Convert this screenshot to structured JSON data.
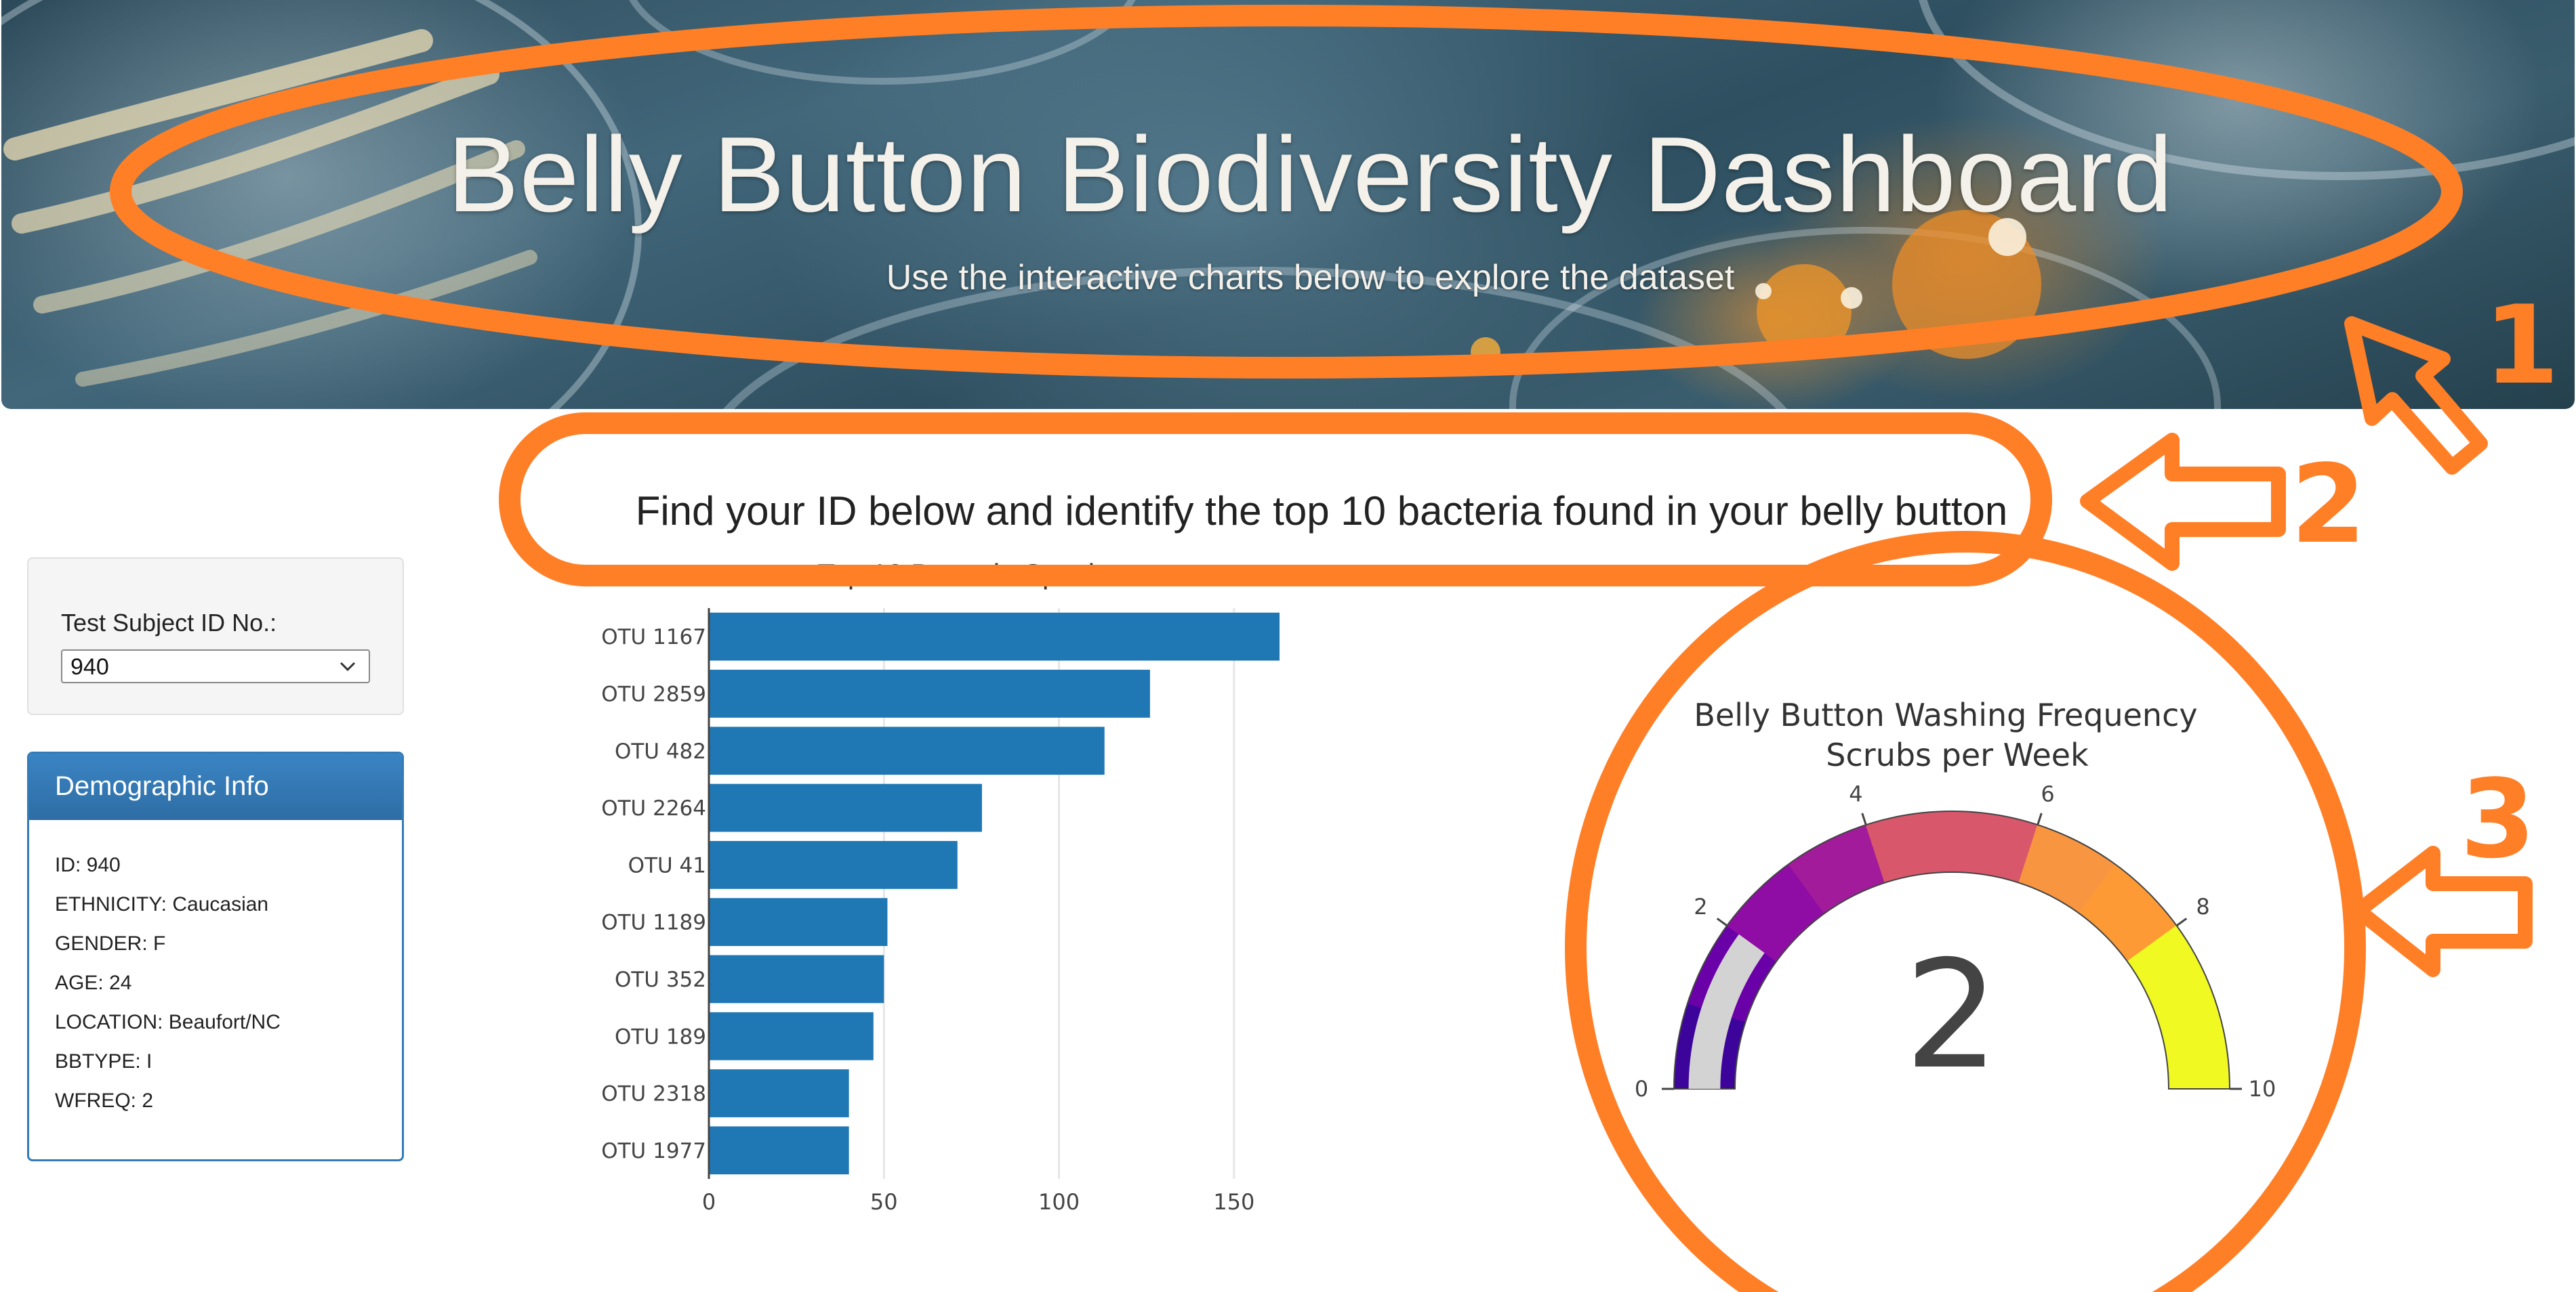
{
  "hero": {
    "title": "Belly Button Biodiversity Dashboard",
    "subtitle": "Use the interactive charts below to explore the dataset"
  },
  "main_heading": "Find your ID below and identify the top 10 bacteria found in your belly button",
  "selector": {
    "label": "Test Subject ID No.:",
    "selected": "940"
  },
  "demographic": {
    "title": "Demographic Info",
    "rows": [
      "ID: 940",
      "ETHNICITY: Caucasian",
      "GENDER: F",
      "AGE: 24",
      "LOCATION: Beaufort/NC",
      "BBTYPE: I",
      "WFREQ: 2"
    ]
  },
  "annotations": {
    "labels": [
      "1",
      "2",
      "3"
    ],
    "color": "#ff7f27"
  },
  "chart_data": [
    {
      "type": "bar",
      "orientation": "horizontal",
      "title": "Top 10 Bacteria Species",
      "categories": [
        "OTU 1167",
        "OTU 2859",
        "OTU 482",
        "OTU 2264",
        "OTU 41",
        "OTU 1189",
        "OTU 352",
        "OTU 189",
        "OTU 2318",
        "OTU 1977"
      ],
      "values": [
        163,
        126,
        113,
        78,
        71,
        51,
        50,
        47,
        40,
        40
      ],
      "xticks": [
        "0",
        "50",
        "100",
        "150"
      ],
      "xlim": [
        0,
        175
      ],
      "grid": true,
      "color": "#1f77b4"
    },
    {
      "type": "gauge",
      "title": "Belly Button Washing Frequency",
      "subtitle": "Scrubs per Week",
      "value": 2,
      "value_label": "2",
      "range": [
        0,
        10
      ],
      "ticks": [
        "0",
        "2",
        "4",
        "6",
        "8",
        "10"
      ],
      "bands": [
        {
          "from": 0,
          "to": 1,
          "color": "#3d049b"
        },
        {
          "from": 1,
          "to": 2,
          "color": "#6a00a8"
        },
        {
          "from": 2,
          "to": 3,
          "color": "#8f0da4"
        },
        {
          "from": 3,
          "to": 4,
          "color": "#a11b9b"
        },
        {
          "from": 4,
          "to": 6,
          "color": "#d8576b"
        },
        {
          "from": 6,
          "to": 7,
          "color": "#f89540"
        },
        {
          "from": 7,
          "to": 8,
          "color": "#fd9a35"
        },
        {
          "from": 8,
          "to": 10,
          "color": "#f0f921"
        }
      ],
      "bar_color": "#d3d3d3"
    }
  ]
}
